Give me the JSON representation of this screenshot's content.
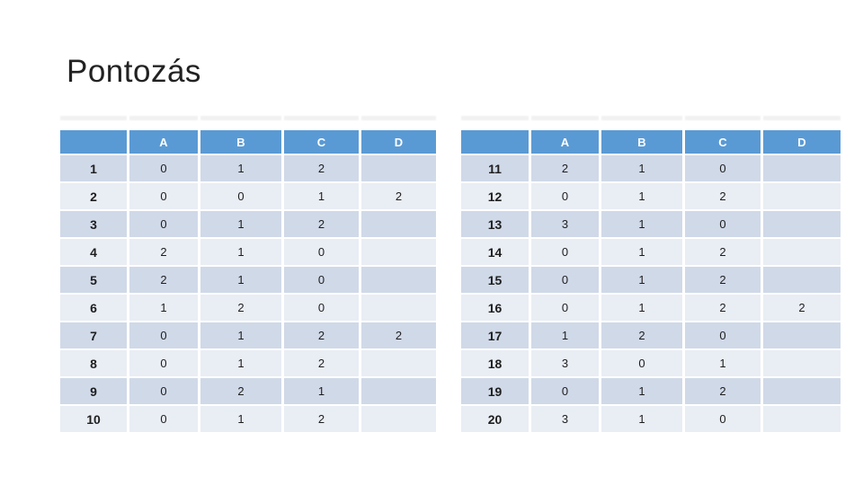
{
  "slide": {
    "title": "Pontozás"
  },
  "colors": {
    "background": "#ffffff",
    "title_text": "#222222",
    "header_bg": "#5a9ad4",
    "header_text": "#ffffff",
    "band_dark": "#d0d9e8",
    "band_light": "#e9edf4",
    "cell_text": "#1e1e1e",
    "shadow_band": "#f1f1f1"
  },
  "tables": [
    {
      "id": "score-table-1-10",
      "columns": [
        "",
        "A",
        "B",
        "C",
        "D"
      ],
      "rows": [
        {
          "label": "1",
          "values": [
            "0",
            "1",
            "2",
            ""
          ]
        },
        {
          "label": "2",
          "values": [
            "0",
            "0",
            "1",
            "2"
          ]
        },
        {
          "label": "3",
          "values": [
            "0",
            "1",
            "2",
            ""
          ]
        },
        {
          "label": "4",
          "values": [
            "2",
            "1",
            "0",
            ""
          ]
        },
        {
          "label": "5",
          "values": [
            "2",
            "1",
            "0",
            ""
          ]
        },
        {
          "label": "6",
          "values": [
            "1",
            "2",
            "0",
            ""
          ]
        },
        {
          "label": "7",
          "values": [
            "0",
            "1",
            "2",
            "2"
          ]
        },
        {
          "label": "8",
          "values": [
            "0",
            "1",
            "2",
            ""
          ]
        },
        {
          "label": "9",
          "values": [
            "0",
            "2",
            "1",
            ""
          ]
        },
        {
          "label": "10",
          "values": [
            "0",
            "1",
            "2",
            ""
          ]
        }
      ]
    },
    {
      "id": "score-table-11-20",
      "columns": [
        "",
        "A",
        "B",
        "C",
        "D"
      ],
      "rows": [
        {
          "label": "11",
          "values": [
            "2",
            "1",
            "0",
            ""
          ]
        },
        {
          "label": "12",
          "values": [
            "0",
            "1",
            "2",
            ""
          ]
        },
        {
          "label": "13",
          "values": [
            "3",
            "1",
            "0",
            ""
          ]
        },
        {
          "label": "14",
          "values": [
            "0",
            "1",
            "2",
            ""
          ]
        },
        {
          "label": "15",
          "values": [
            "0",
            "1",
            "2",
            ""
          ]
        },
        {
          "label": "16",
          "values": [
            "0",
            "1",
            "2",
            "2"
          ]
        },
        {
          "label": "17",
          "values": [
            "1",
            "2",
            "0",
            ""
          ]
        },
        {
          "label": "18",
          "values": [
            "3",
            "0",
            "1",
            ""
          ]
        },
        {
          "label": "19",
          "values": [
            "0",
            "1",
            "2",
            ""
          ]
        },
        {
          "label": "20",
          "values": [
            "3",
            "1",
            "0",
            ""
          ]
        }
      ]
    }
  ]
}
